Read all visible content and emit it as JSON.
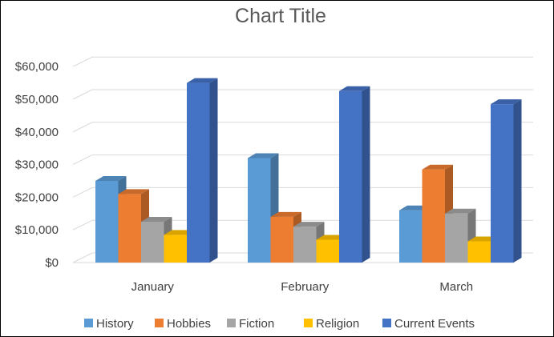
{
  "chart_data": {
    "type": "bar",
    "style": "3d-clustered-column",
    "title": "Chart Title",
    "xlabel": "",
    "ylabel": "",
    "categories": [
      "January",
      "February",
      "March"
    ],
    "y_ticks": [
      "$0",
      "$10,000",
      "$20,000",
      "$30,000",
      "$40,000",
      "$50,000",
      "$60,000"
    ],
    "ylim": [
      0,
      60000
    ],
    "grid": true,
    "legend_position": "bottom",
    "series": [
      {
        "name": "History",
        "color": "#5b9bd5",
        "values": [
          25000,
          32000,
          16000
        ]
      },
      {
        "name": "Hobbies",
        "color": "#ed7d31",
        "values": [
          21000,
          14000,
          28500
        ]
      },
      {
        "name": "Fiction",
        "color": "#a5a5a5",
        "values": [
          12500,
          11000,
          15000
        ]
      },
      {
        "name": "Religion",
        "color": "#ffc000",
        "values": [
          8500,
          7000,
          6500
        ]
      },
      {
        "name": "Current Events",
        "color": "#4472c4",
        "values": [
          55000,
          52500,
          48500
        ]
      }
    ]
  }
}
